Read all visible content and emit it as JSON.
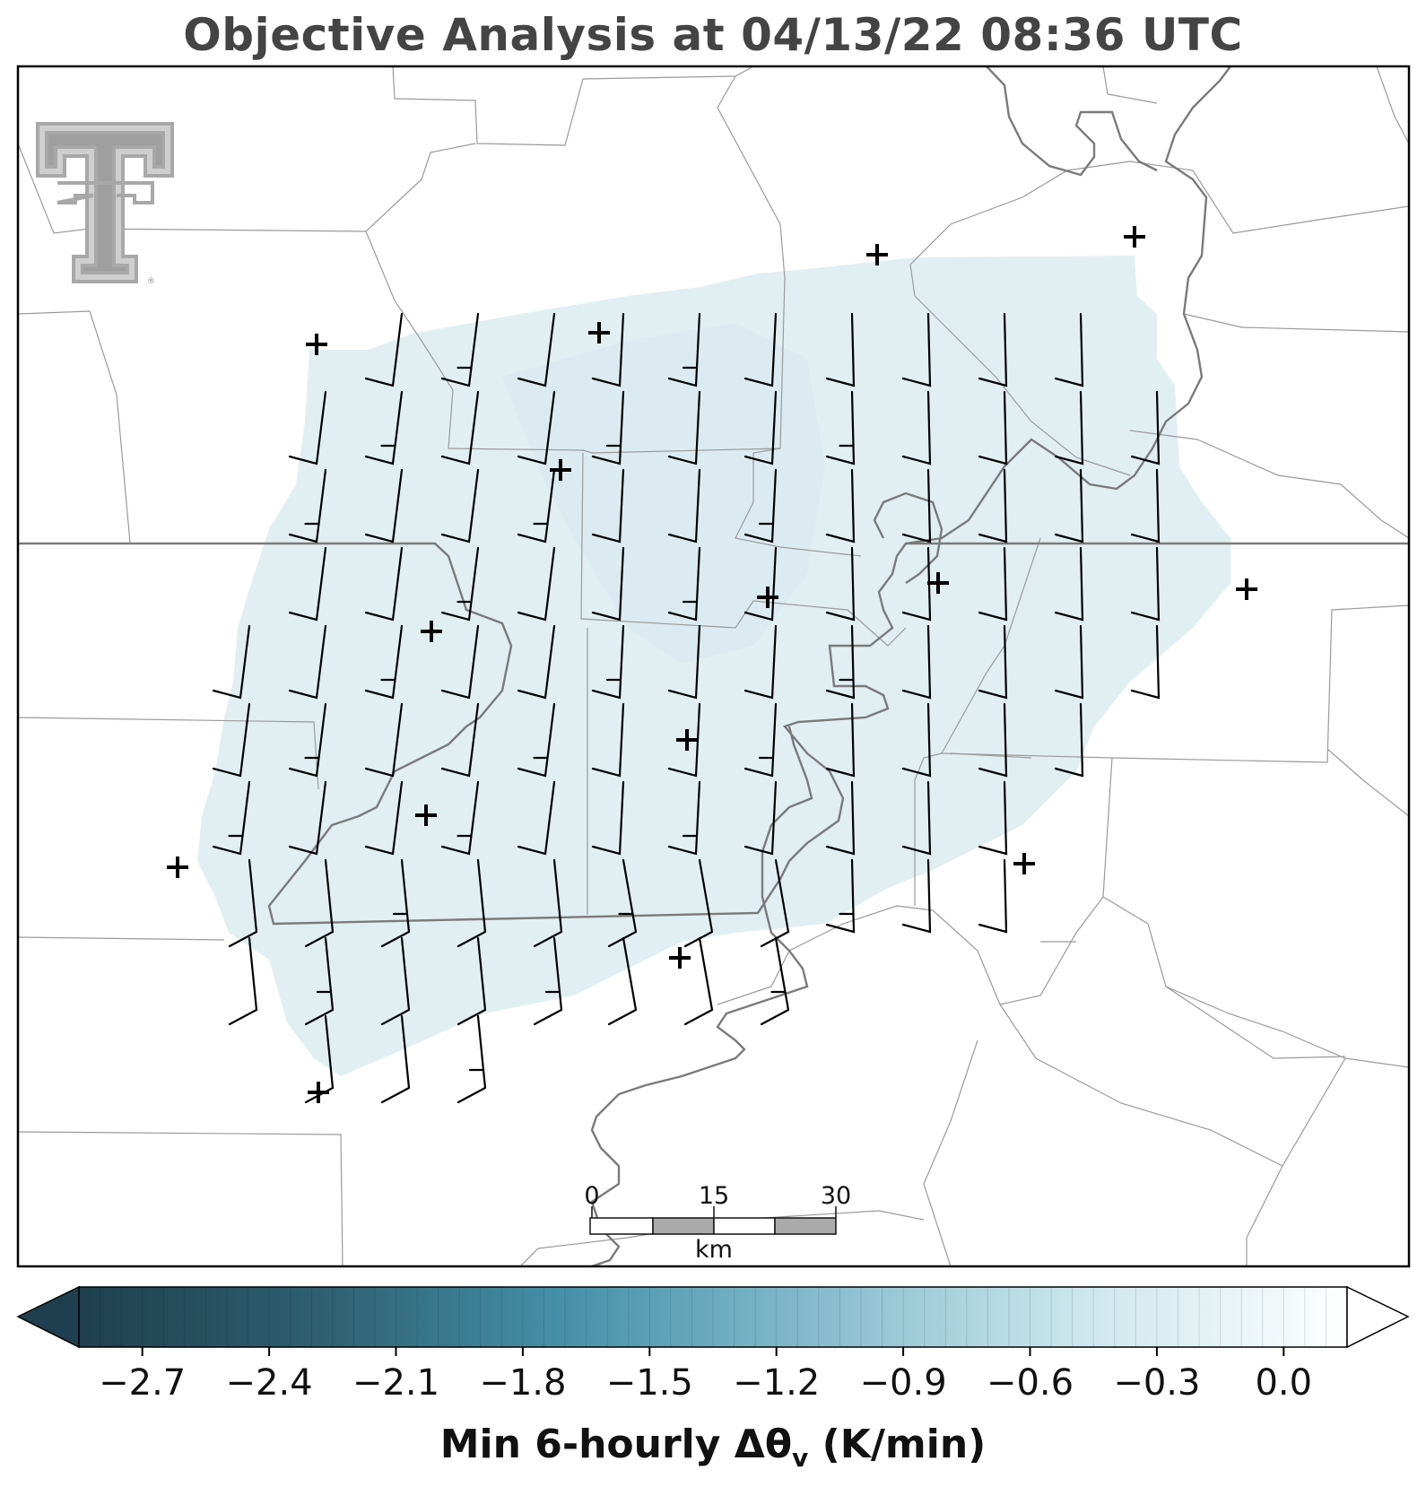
{
  "title": "Objective Analysis at 04/13/22 08:36 UTC",
  "colorbar": {
    "label_main": "Min 6-hourly Δθ",
    "label_sub": "v",
    "label_units": " (K/min)",
    "ticks": [
      "−2.7",
      "−2.4",
      "−2.1",
      "−1.8",
      "−1.5",
      "−1.2",
      "−0.9",
      "−0.6",
      "−0.3",
      "0.0"
    ],
    "tick_values": [
      -2.7,
      -2.4,
      -2.1,
      -1.8,
      -1.5,
      -1.2,
      -0.9,
      -0.6,
      -0.3,
      0.0
    ],
    "vmin": -2.85,
    "vmax": 0.15,
    "extend": "both",
    "colormap_stops": [
      "#1f3f4e",
      "#2f6272",
      "#4590a8",
      "#8cc0d0",
      "#c9e5ec",
      "#ffffff"
    ]
  },
  "scale_bar": {
    "labels": [
      "0",
      "15",
      "30"
    ],
    "unit": "km"
  },
  "analysis_field": {
    "value_range": [
      -0.6,
      -0.35
    ],
    "fill_color": "#e1eff3",
    "inner_fill_color": "#dbebf0"
  },
  "stations": "plus-markers",
  "logo": "texas-tech-double-t-logo",
  "colors": {
    "border_gray": "#999999",
    "state_line": "#777777",
    "river": "#888888",
    "barb": "#000000"
  }
}
